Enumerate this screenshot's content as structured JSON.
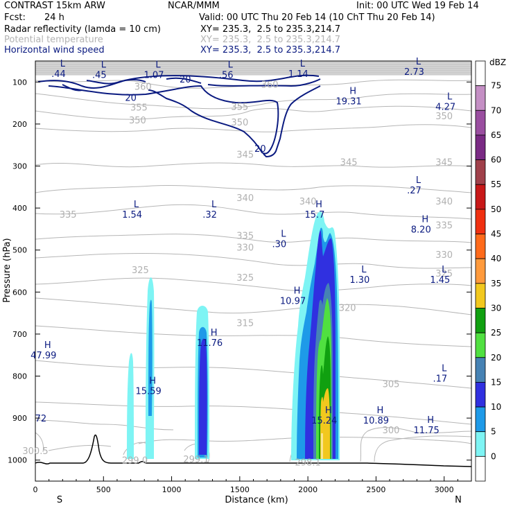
{
  "header": {
    "left_title": "CONTRAST 15km ARW",
    "center_title": "NCAR/MMM",
    "init": "Init: 00 UTC Wed 19 Feb 14",
    "fcst_label": "Fcst:",
    "fcst_value": "24 h",
    "valid": "Valid: 00 UTC Thu 20 Feb 14 (10 ChT Thu 20 Feb 14)",
    "fields": [
      {
        "name": "Radar reflectivity (lamda = 10 cm)",
        "xy": "XY= 235.3,  2.5 to 235.3,214.7",
        "color": "#000000"
      },
      {
        "name": "Potential temperature",
        "xy": "XY= 235.3,  2.5 to 235.3,214.7",
        "color": "#b3b3b3"
      },
      {
        "name": "Horizontal wind speed",
        "xy": "XY= 235.3,  2.5 to 235.3,214.7",
        "color": "#0a1a80"
      }
    ]
  },
  "chart_data": {
    "type": "cross-section contour plot",
    "xlabel": "Distance (km)",
    "ylabel": "Pressure (hPa)",
    "xlim": [
      0,
      3200
    ],
    "ylim": [
      1050,
      50
    ],
    "x_ticks": [
      0,
      500,
      1000,
      1500,
      2000,
      2500,
      3000
    ],
    "y_ticks": [
      100,
      200,
      300,
      400,
      500,
      600,
      700,
      800,
      900,
      1000
    ],
    "left_end_label": "S",
    "right_end_label": "N",
    "colorbar": {
      "unit": "dBZ",
      "levels": [
        {
          "value": "75",
          "color": "#c48fc4"
        },
        {
          "value": "70",
          "color": "#9a4ea0"
        },
        {
          "value": "65",
          "color": "#7a2a84"
        },
        {
          "value": "60",
          "color": "#a0404a"
        },
        {
          "value": "55",
          "color": "#c81818"
        },
        {
          "value": "50",
          "color": "#f03010"
        },
        {
          "value": "45",
          "color": "#ff6a1a"
        },
        {
          "value": "40",
          "color": "#ff9a3c"
        },
        {
          "value": "35",
          "color": "#f2c81e"
        },
        {
          "value": "30",
          "color": "#10a010"
        },
        {
          "value": "25",
          "color": "#50e040"
        },
        {
          "value": "20",
          "color": "#4682b4"
        },
        {
          "value": "15",
          "color": "#3030e0"
        },
        {
          "value": "10",
          "color": "#1e9ae8"
        },
        {
          "value": "5",
          "color": "#7ef4f4"
        },
        {
          "value": "0",
          "color": "#ffffff"
        }
      ]
    },
    "theta_labels": [
      {
        "text": "360",
        "x": 790,
        "p": 110
      },
      {
        "text": "360",
        "x": 1720,
        "p": 105
      },
      {
        "text": "355",
        "x": 760,
        "p": 160
      },
      {
        "text": "355",
        "x": 1500,
        "p": 158
      },
      {
        "text": "355",
        "x": 1500,
        "p": 158
      },
      {
        "text": "350",
        "x": 750,
        "p": 190
      },
      {
        "text": "350",
        "x": 1500,
        "p": 195
      },
      {
        "text": "350",
        "x": 3000,
        "p": 180
      },
      {
        "text": "345",
        "x": 1540,
        "p": 272
      },
      {
        "text": "345",
        "x": 2300,
        "p": 290
      },
      {
        "text": "345",
        "x": 3000,
        "p": 290
      },
      {
        "text": "340",
        "x": 1540,
        "p": 375
      },
      {
        "text": "340",
        "x": 2000,
        "p": 383
      },
      {
        "text": "340",
        "x": 3000,
        "p": 383
      },
      {
        "text": "335",
        "x": 240,
        "p": 415
      },
      {
        "text": "335",
        "x": 1540,
        "p": 465
      },
      {
        "text": "335",
        "x": 3000,
        "p": 440
      },
      {
        "text": "330",
        "x": 1540,
        "p": 493
      },
      {
        "text": "330",
        "x": 3000,
        "p": 510
      },
      {
        "text": "325",
        "x": 770,
        "p": 547
      },
      {
        "text": "325",
        "x": 1540,
        "p": 565
      },
      {
        "text": "325",
        "x": 3000,
        "p": 555
      },
      {
        "text": "320",
        "x": 2290,
        "p": 637
      },
      {
        "text": "315",
        "x": 1540,
        "p": 673
      },
      {
        "text": "305",
        "x": 2610,
        "p": 818
      },
      {
        "text": "300",
        "x": 2610,
        "p": 928
      },
      {
        "text": "300.5",
        "x": 0,
        "p": 977
      },
      {
        "text": "299.0",
        "x": 730,
        "p": 1000
      },
      {
        "text": "299.1",
        "x": 1180,
        "p": 997
      },
      {
        "text": "298.1",
        "x": 2000,
        "p": 1005
      }
    ],
    "highs_lows": [
      {
        "mark": "L",
        "value": ".44",
        "x": 170,
        "p": 70
      },
      {
        "mark": "L",
        "value": ".45",
        "x": 470,
        "p": 72
      },
      {
        "mark": "L",
        "value": "1.07",
        "x": 870,
        "p": 72
      },
      {
        "mark": "L",
        "value": ".56",
        "x": 1400,
        "p": 72
      },
      {
        "mark": "L",
        "value": "1.14",
        "x": 1930,
        "p": 70
      },
      {
        "mark": "L",
        "value": "2.73",
        "x": 2780,
        "p": 65
      },
      {
        "mark": "H",
        "value": "19.31",
        "x": 2300,
        "p": 135
      },
      {
        "mark": "L",
        "value": "4.27",
        "x": 3010,
        "p": 148
      },
      {
        "mark": "L",
        "value": ".27",
        "x": 2780,
        "p": 347
      },
      {
        "mark": "L",
        "value": "1.54",
        "x": 710,
        "p": 405
      },
      {
        "mark": "L",
        "value": ".32",
        "x": 1280,
        "p": 405
      },
      {
        "mark": "H",
        "value": "15.7",
        "x": 2050,
        "p": 405
      },
      {
        "mark": "H",
        "value": "8.20",
        "x": 2830,
        "p": 440
      },
      {
        "mark": "L",
        "value": ".30",
        "x": 1790,
        "p": 475
      },
      {
        "mark": "L",
        "value": "1.30",
        "x": 2380,
        "p": 560
      },
      {
        "mark": "L",
        "value": "1.45",
        "x": 2970,
        "p": 560
      },
      {
        "mark": "H",
        "value": "10.97",
        "x": 1890,
        "p": 610
      },
      {
        "mark": "H",
        "value": "11.76",
        "x": 1280,
        "p": 710
      },
      {
        "mark": "H",
        "value": "47.99",
        "x": 60,
        "p": 740
      },
      {
        "mark": "L",
        "value": ".17",
        "x": 2970,
        "p": 795
      },
      {
        "mark": "H",
        "value": "15.59",
        "x": 830,
        "p": 825
      },
      {
        "mark": "H",
        "value": "15.24",
        "x": 2120,
        "p": 895
      },
      {
        "mark": "H",
        "value": "10.89",
        "x": 2500,
        "p": 895
      },
      {
        "mark": "H",
        "value": "11.75",
        "x": 2870,
        "p": 918
      },
      {
        "mark": "",
        "value": "72",
        "x": 40,
        "p": 890
      }
    ],
    "wind_contour_labels": [
      {
        "text": "20",
        "x": 1100,
        "p": 93
      },
      {
        "text": "20",
        "x": 700,
        "p": 137
      },
      {
        "text": "20",
        "x": 1650,
        "p": 258
      }
    ],
    "grid": false
  }
}
